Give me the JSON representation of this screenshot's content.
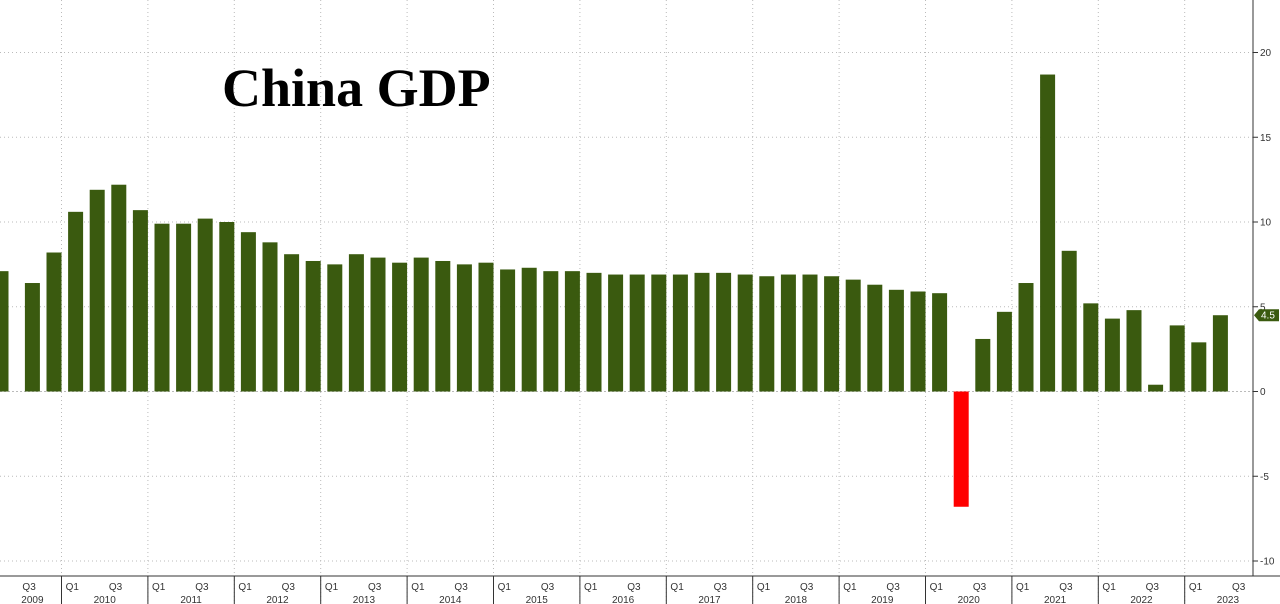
{
  "chart_data": {
    "type": "bar",
    "title": "China GDP",
    "xlabel": "",
    "ylabel": "",
    "ylim": [
      -11,
      23
    ],
    "yticks": [
      20,
      15,
      10,
      5,
      0,
      -5,
      -10
    ],
    "grid": true,
    "colors": {
      "positive": "#3a5a0f",
      "negative": "#ff0000",
      "axis": "#333333",
      "grid": "#bbbbbb"
    },
    "last_value_label": "4.5",
    "years": [
      "2009",
      "2010",
      "2011",
      "2012",
      "2013",
      "2014",
      "2015",
      "2016",
      "2017",
      "2018",
      "2019",
      "2020",
      "2021",
      "2022",
      "2023"
    ],
    "quarter_labels": [
      "Q1",
      "Q3"
    ],
    "first_quarter_index": 1,
    "values": [
      7.1,
      6.4,
      8.2,
      10.6,
      11.9,
      12.2,
      10.7,
      9.9,
      9.9,
      10.2,
      10.0,
      9.4,
      8.8,
      8.1,
      7.7,
      7.5,
      8.1,
      7.9,
      7.6,
      7.9,
      7.7,
      7.5,
      7.6,
      7.2,
      7.3,
      7.1,
      7.1,
      7.0,
      6.9,
      6.9,
      6.9,
      6.9,
      7.0,
      7.0,
      6.9,
      6.8,
      6.9,
      6.9,
      6.8,
      6.6,
      6.3,
      6.0,
      5.9,
      5.8,
      -6.8,
      3.1,
      4.7,
      6.4,
      18.7,
      8.3,
      5.2,
      4.3,
      4.8,
      0.4,
      3.9,
      2.9,
      4.5
    ]
  }
}
